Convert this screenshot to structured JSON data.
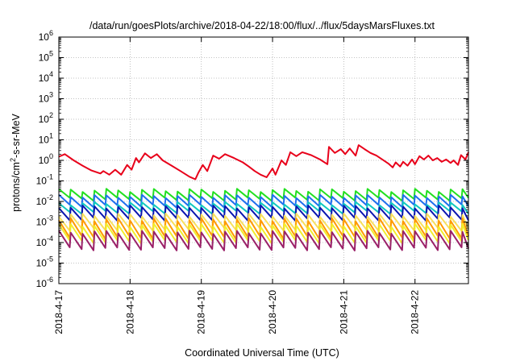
{
  "chart_data": {
    "type": "line",
    "title": "/data/run/goesPlots/archive/2018-04-22/18:00/flux/../flux/5daysMarsFluxes.txt",
    "xlabel": "Coordinated Universal Time (UTC)",
    "ylabel_base": "protons/cm",
    "ylabel_sup": "2",
    "ylabel_rest": "-s-sr-MeV",
    "yscale": "log",
    "ylim": [
      1e-06,
      1000000.0
    ],
    "xlim": [
      "2018-04-17T00:00",
      "2018-04-22T18:00"
    ],
    "grid": true,
    "x_ticks": [
      {
        "date": "2018-04-17T00:00",
        "label": "2018-4-17"
      },
      {
        "date": "2018-04-18T00:00",
        "label": "2018-4-18"
      },
      {
        "date": "2018-04-19T00:00",
        "label": "2018-4-19"
      },
      {
        "date": "2018-04-20T00:00",
        "label": "2018-4-20"
      },
      {
        "date": "2018-04-21T00:00",
        "label": "2018-4-21"
      },
      {
        "date": "2018-04-22T00:00",
        "label": "2018-4-22"
      }
    ],
    "y_ticks": [
      {
        "value": 1e-06,
        "base": "10",
        "exp": "-6"
      },
      {
        "value": 1e-05,
        "base": "10",
        "exp": "-5"
      },
      {
        "value": 0.0001,
        "base": "10",
        "exp": "-4"
      },
      {
        "value": 0.001,
        "base": "10",
        "exp": "-3"
      },
      {
        "value": 0.01,
        "base": "10",
        "exp": "-2"
      },
      {
        "value": 0.1,
        "base": "10",
        "exp": "-1"
      },
      {
        "value": 1,
        "base": "10",
        "exp": "0"
      },
      {
        "value": 10,
        "base": "10",
        "exp": "1"
      },
      {
        "value": 100,
        "base": "10",
        "exp": "2"
      },
      {
        "value": 1000,
        "base": "10",
        "exp": "3"
      },
      {
        "value": 10000,
        "base": "10",
        "exp": "4"
      },
      {
        "value": 100000,
        "base": "10",
        "exp": "5"
      },
      {
        "value": 1000000,
        "base": "10",
        "exp": "6"
      }
    ],
    "series": [
      {
        "color": "#e8001a",
        "points": [
          [
            "2018-04-17T00:00",
            1.5
          ],
          [
            "2018-04-17T02:00",
            2.0
          ],
          [
            "2018-04-17T05:00",
            1.0
          ],
          [
            "2018-04-17T08:00",
            0.55
          ],
          [
            "2018-04-17T11:00",
            0.32
          ],
          [
            "2018-04-17T14:00",
            0.23
          ],
          [
            "2018-04-17T15:00",
            0.3
          ],
          [
            "2018-04-17T17:00",
            0.2
          ],
          [
            "2018-04-17T19:00",
            0.35
          ],
          [
            "2018-04-17T21:00",
            0.2
          ],
          [
            "2018-04-17T23:00",
            0.6
          ],
          [
            "2018-04-18T00:30",
            0.35
          ],
          [
            "2018-04-18T02:00",
            1.3
          ],
          [
            "2018-04-18T03:00",
            0.8
          ],
          [
            "2018-04-18T05:00",
            2.2
          ],
          [
            "2018-04-18T07:00",
            1.3
          ],
          [
            "2018-04-18T09:00",
            2.0
          ],
          [
            "2018-04-18T11:00",
            1.0
          ],
          [
            "2018-04-18T14:00",
            0.55
          ],
          [
            "2018-04-18T17:00",
            0.3
          ],
          [
            "2018-04-18T20:00",
            0.16
          ],
          [
            "2018-04-18T22:00",
            0.12
          ],
          [
            "2018-04-18T23:00",
            0.25
          ],
          [
            "2018-04-19T00:30",
            0.6
          ],
          [
            "2018-04-19T02:00",
            0.3
          ],
          [
            "2018-04-19T04:00",
            1.7
          ],
          [
            "2018-04-19T06:00",
            1.2
          ],
          [
            "2018-04-19T08:00",
            2.0
          ],
          [
            "2018-04-19T11:00",
            1.3
          ],
          [
            "2018-04-19T14:00",
            0.8
          ],
          [
            "2018-04-19T16:00",
            0.5
          ],
          [
            "2018-04-19T18:00",
            0.3
          ],
          [
            "2018-04-19T20:00",
            0.2
          ],
          [
            "2018-04-19T22:00",
            0.15
          ],
          [
            "2018-04-20T00:00",
            0.4
          ],
          [
            "2018-04-20T01:00",
            0.2
          ],
          [
            "2018-04-20T03:00",
            1.0
          ],
          [
            "2018-04-20T04:30",
            0.6
          ],
          [
            "2018-04-20T06:00",
            2.5
          ],
          [
            "2018-04-20T08:00",
            1.6
          ],
          [
            "2018-04-20T10:00",
            2.5
          ],
          [
            "2018-04-20T13:00",
            1.8
          ],
          [
            "2018-04-20T16:00",
            1.1
          ],
          [
            "2018-04-20T18:30",
            0.65
          ],
          [
            "2018-04-20T19:00",
            4.5
          ],
          [
            "2018-04-20T21:00",
            2.3
          ],
          [
            "2018-04-20T23:00",
            3.5
          ],
          [
            "2018-04-21T00:30",
            2.0
          ],
          [
            "2018-04-21T02:00",
            3.8
          ],
          [
            "2018-04-21T04:00",
            1.7
          ],
          [
            "2018-04-21T05:00",
            5.5
          ],
          [
            "2018-04-21T07:00",
            3.5
          ],
          [
            "2018-04-21T09:00",
            2.3
          ],
          [
            "2018-04-21T11:00",
            1.7
          ],
          [
            "2018-04-21T13:00",
            1.1
          ],
          [
            "2018-04-21T15:00",
            0.7
          ],
          [
            "2018-04-21T16:30",
            0.45
          ],
          [
            "2018-04-21T17:30",
            0.8
          ],
          [
            "2018-04-21T19:00",
            0.5
          ],
          [
            "2018-04-21T20:00",
            0.85
          ],
          [
            "2018-04-21T21:30",
            0.55
          ],
          [
            "2018-04-21T23:00",
            1.1
          ],
          [
            "2018-04-22T00:00",
            0.65
          ],
          [
            "2018-04-22T01:30",
            1.6
          ],
          [
            "2018-04-22T03:00",
            1.1
          ],
          [
            "2018-04-22T04:30",
            1.7
          ],
          [
            "2018-04-22T06:00",
            1.0
          ],
          [
            "2018-04-22T07:30",
            1.3
          ],
          [
            "2018-04-22T09:00",
            0.85
          ],
          [
            "2018-04-22T10:30",
            1.1
          ],
          [
            "2018-04-22T12:00",
            0.75
          ],
          [
            "2018-04-22T13:00",
            1.0
          ],
          [
            "2018-04-22T14:30",
            0.6
          ],
          [
            "2018-04-22T15:30",
            1.8
          ],
          [
            "2018-04-22T17:00",
            1.1
          ],
          [
            "2018-04-22T18:00",
            2.5
          ]
        ]
      },
      {
        "color": "#22e020",
        "sawtooth": {
          "high": 0.035,
          "low": 0.013
        }
      },
      {
        "color": "#1e6fee",
        "sawtooth": {
          "high": 0.018,
          "low": 0.006
        }
      },
      {
        "color": "#10c8c0",
        "sawtooth": {
          "high": 0.008,
          "low": 0.003
        }
      },
      {
        "color": "#0a16b0",
        "sawtooth": {
          "high": 0.0055,
          "low": 0.0014
        }
      },
      {
        "color": "#f8e05c",
        "sawtooth": {
          "high": 0.0022,
          "low": 0.00045
        }
      },
      {
        "color": "#ff9a00",
        "sawtooth": {
          "high": 0.0013,
          "low": 0.00018
        }
      },
      {
        "color": "#f2ee2c",
        "sawtooth": {
          "high": 0.0007,
          "low": 0.00011
        }
      },
      {
        "color": "#9a2068",
        "sawtooth": {
          "high": 0.00032,
          "low": 5e-05
        }
      }
    ],
    "sawtooth_period_hours": 4
  }
}
